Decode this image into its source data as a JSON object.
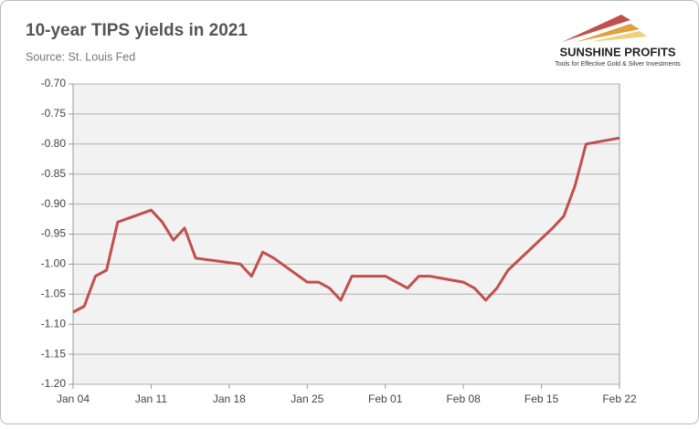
{
  "chart_data": {
    "type": "line",
    "title": "10-year TIPS yields in 2021",
    "subtitle": "Source: St. Louis Fed",
    "logo": {
      "name": "SUNSHINE PROFITS",
      "tagline": "Tools for Effective Gold & Silver Investments"
    },
    "x": [
      "Jan 04",
      "Jan 05",
      "Jan 06",
      "Jan 07",
      "Jan 08",
      "Jan 11",
      "Jan 12",
      "Jan 13",
      "Jan 14",
      "Jan 15",
      "Jan 19",
      "Jan 20",
      "Jan 21",
      "Jan 22",
      "Jan 25",
      "Jan 26",
      "Jan 27",
      "Jan 28",
      "Jan 29",
      "Feb 01",
      "Feb 02",
      "Feb 03",
      "Feb 04",
      "Feb 05",
      "Feb 08",
      "Feb 09",
      "Feb 10",
      "Feb 11",
      "Feb 12",
      "Feb 16",
      "Feb 17",
      "Feb 18",
      "Feb 19",
      "Feb 22"
    ],
    "values": [
      -1.08,
      -1.07,
      -1.02,
      -1.01,
      -0.93,
      -0.91,
      -0.93,
      -0.96,
      -0.94,
      -0.99,
      -1.0,
      -1.02,
      -0.98,
      -0.99,
      -1.03,
      -1.03,
      -1.04,
      -1.06,
      -1.02,
      -1.02,
      -1.03,
      -1.04,
      -1.02,
      -1.02,
      -1.03,
      -1.04,
      -1.06,
      -1.04,
      -1.01,
      -0.94,
      -0.92,
      -0.87,
      -0.8,
      -0.79
    ],
    "color": "#c0504d",
    "xlim": [
      "Jan 04",
      "Feb 22"
    ],
    "xticks": [
      "Jan 04",
      "Jan 11",
      "Jan 18",
      "Jan 25",
      "Feb 01",
      "Feb 08",
      "Feb 15",
      "Feb 22"
    ],
    "ylim": [
      -1.2,
      -0.7
    ],
    "yticks": [
      {
        "value": -1.2,
        "label": "-1.20"
      },
      {
        "value": -1.15,
        "label": "-1.15"
      },
      {
        "value": -1.1,
        "label": "-1.10"
      },
      {
        "value": -1.05,
        "label": "-1.05"
      },
      {
        "value": -1.0,
        "label": "-1.00"
      },
      {
        "value": -0.95,
        "label": "-0.95"
      },
      {
        "value": -0.9,
        "label": "-0.90"
      },
      {
        "value": -0.85,
        "label": "-0.85"
      },
      {
        "value": -0.8,
        "label": "-0.80"
      },
      {
        "value": -0.75,
        "label": "-0.75"
      },
      {
        "value": -0.7,
        "label": "-0.70"
      }
    ],
    "grid": true
  }
}
